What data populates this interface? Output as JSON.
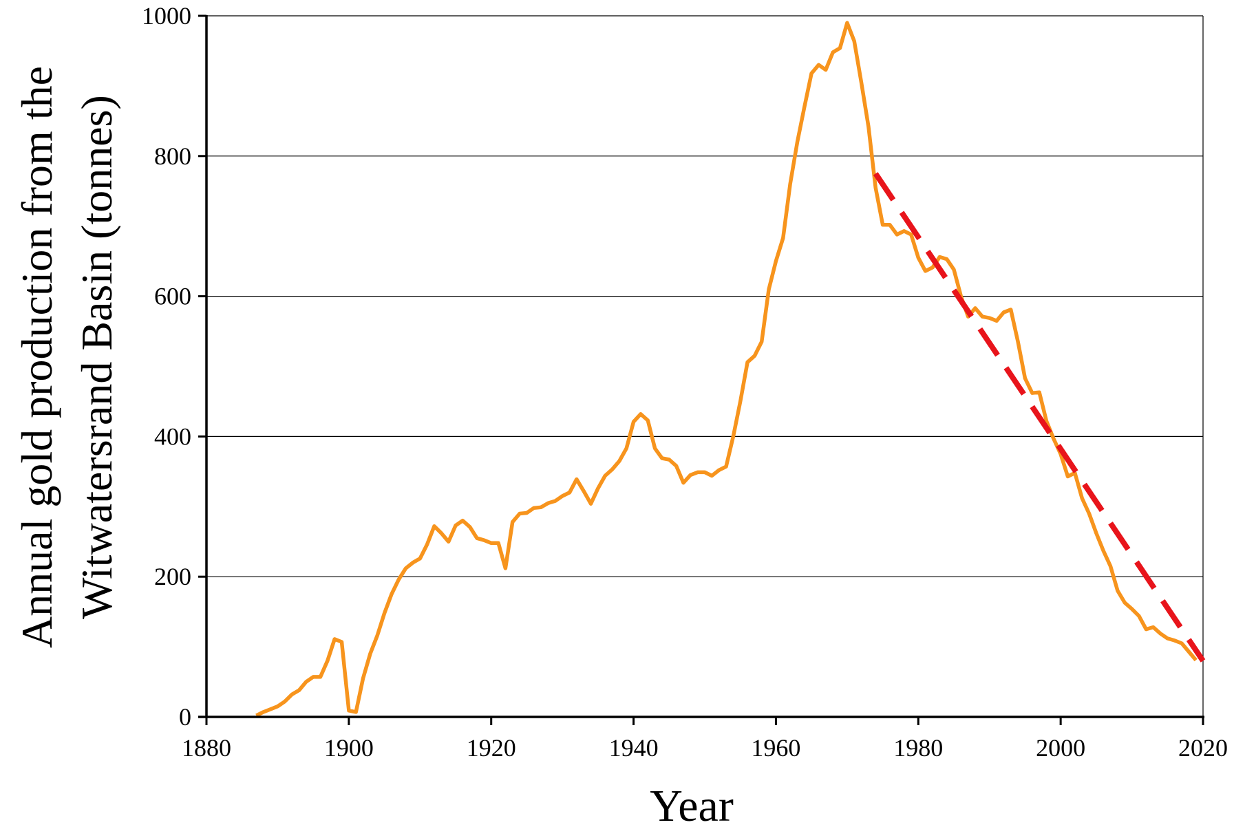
{
  "chart_data": {
    "type": "line",
    "xlabel": "Year",
    "ylabel_line1": "Annual gold production from the",
    "ylabel_line2": "Witwatersrand Basin (tonnes)",
    "xlim": [
      1880,
      2020
    ],
    "ylim": [
      0,
      1000
    ],
    "x_ticks": [
      1880,
      1900,
      1920,
      1940,
      1960,
      1980,
      2000,
      2020
    ],
    "y_ticks": [
      0,
      200,
      400,
      600,
      800,
      1000
    ],
    "grid": "horizontal",
    "series": [
      {
        "style": "solid",
        "color": "#F7941D",
        "x": [
          1887,
          1888,
          1889,
          1890,
          1891,
          1892,
          1893,
          1894,
          1895,
          1896,
          1897,
          1898,
          1899,
          1900,
          1901,
          1902,
          1903,
          1904,
          1905,
          1906,
          1907,
          1908,
          1909,
          1910,
          1911,
          1912,
          1913,
          1914,
          1915,
          1916,
          1917,
          1918,
          1919,
          1920,
          1921,
          1922,
          1923,
          1924,
          1925,
          1926,
          1927,
          1928,
          1929,
          1930,
          1931,
          1932,
          1933,
          1934,
          1935,
          1936,
          1937,
          1938,
          1939,
          1940,
          1941,
          1942,
          1943,
          1944,
          1945,
          1946,
          1947,
          1948,
          1949,
          1950,
          1951,
          1952,
          1953,
          1954,
          1955,
          1956,
          1957,
          1958,
          1959,
          1960,
          1961,
          1962,
          1963,
          1964,
          1965,
          1966,
          1967,
          1968,
          1969,
          1970,
          1971,
          1972,
          1973,
          1974,
          1975,
          1976,
          1977,
          1978,
          1979,
          1980,
          1981,
          1982,
          1983,
          1984,
          1985,
          1986,
          1987,
          1988,
          1989,
          1990,
          1991,
          1992,
          1993,
          1994,
          1995,
          1996,
          1997,
          1998,
          1999,
          2000,
          2001,
          2002,
          2003,
          2004,
          2005,
          2006,
          2007,
          2008,
          2009,
          2010,
          2011,
          2012,
          2013,
          2014,
          2015,
          2016,
          2017,
          2018,
          2019
        ],
        "y": [
          2,
          7,
          11,
          15,
          22,
          32,
          38,
          50,
          57,
          57,
          80,
          111,
          107,
          9,
          7,
          55,
          90,
          116,
          148,
          175,
          196,
          212,
          220,
          226,
          246,
          272,
          262,
          250,
          273,
          280,
          271,
          255,
          252,
          248,
          248,
          212,
          278,
          290,
          291,
          298,
          299,
          305,
          308,
          315,
          320,
          339,
          322,
          304,
          326,
          344,
          353,
          365,
          383,
          421,
          432,
          423,
          383,
          369,
          367,
          358,
          334,
          345,
          349,
          349,
          344,
          352,
          357,
          400,
          450,
          506,
          515,
          535,
          610,
          650,
          683,
          760,
          820,
          870,
          918,
          930,
          923,
          948,
          954,
          990,
          964,
          905,
          842,
          755,
          702,
          702,
          688,
          693,
          688,
          655,
          636,
          641,
          656,
          653,
          638,
          600,
          571,
          583,
          571,
          569,
          565,
          577,
          581,
          535,
          483,
          462,
          463,
          422,
          397,
          375,
          343,
          348,
          312,
          290,
          262,
          237,
          215,
          180,
          163,
          154,
          144,
          125,
          128,
          119,
          112,
          109,
          105,
          93,
          81
        ]
      },
      {
        "style": "dashed",
        "color": "#E8141B",
        "x": [
          1974,
          2020
        ],
        "y": [
          775,
          80
        ]
      }
    ]
  }
}
